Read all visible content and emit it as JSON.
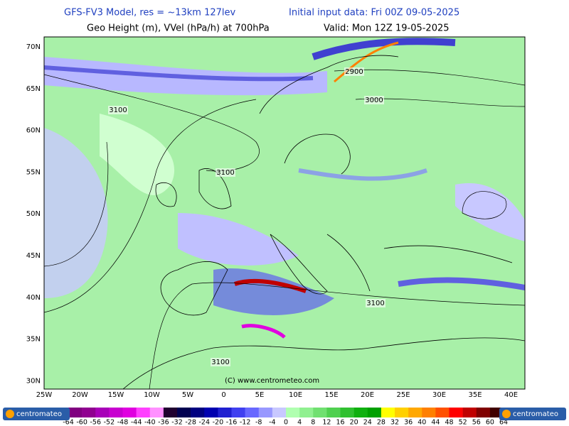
{
  "header": {
    "model": "GFS-FV3 Model, res = ~13km 127lev",
    "init": "Initial input data: Fri 00Z 09-05-2025",
    "field": "Geo Height (m), VVel (hPa/h) at 700hPa",
    "valid": "Valid: Mon 12Z 19-05-2025"
  },
  "map": {
    "lon_labels": [
      "25W",
      "20W",
      "15W",
      "10W",
      "5W",
      "0",
      "5E",
      "10E",
      "15E",
      "20E",
      "25E",
      "30E",
      "35E",
      "40E"
    ],
    "lat_labels": [
      "70N",
      "65N",
      "60N",
      "55N",
      "50N",
      "45N",
      "40N",
      "35N",
      "30N"
    ],
    "contour_labels": [
      "2900",
      "3000",
      "3100",
      "3100",
      "3100",
      "3100"
    ],
    "watermark": "(C) www.centrometeo.com"
  },
  "colorbar": {
    "labels": [
      -64,
      -60,
      -56,
      -52,
      -48,
      -44,
      -40,
      -36,
      -32,
      -28,
      -24,
      -20,
      -16,
      -12,
      -8,
      -4,
      0,
      4,
      8,
      12,
      16,
      20,
      24,
      28,
      32,
      36,
      40,
      44,
      48,
      52,
      56,
      60,
      64
    ],
    "colors": [
      "#800080",
      "#900090",
      "#a800b8",
      "#c800d0",
      "#e000e0",
      "#ff40ff",
      "#ff90ff",
      "#200030",
      "#000050",
      "#000080",
      "#0000b0",
      "#2020d0",
      "#4040f0",
      "#6868ff",
      "#9898ff",
      "#c8c8ff",
      "#b0ffb0",
      "#90f090",
      "#70e070",
      "#50d050",
      "#30c030",
      "#10b010",
      "#00a000",
      "#ffff00",
      "#ffd000",
      "#ffa800",
      "#ff8000",
      "#ff5000",
      "#ff0000",
      "#c00000",
      "#800000",
      "#400000"
    ]
  },
  "logo": {
    "left": "centromateo",
    "right": "centromateo"
  }
}
